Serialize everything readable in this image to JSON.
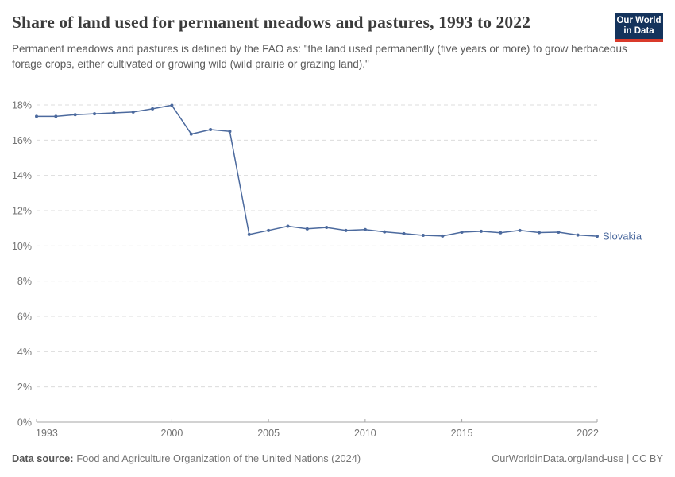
{
  "header": {
    "title": "Share of land used for permanent meadows and pastures, 1993 to 2022",
    "subtitle": "Permanent meadows and pastures is defined by the FAO as: \"the land used permanently (five years or more) to grow herbaceous forage crops, either cultivated or growing wild (wild prairie or grazing land).\"",
    "logo": {
      "line1": "Our World",
      "line2": "in Data",
      "bg_color": "#14335c",
      "accent_color": "#d93a2b"
    }
  },
  "chart_data": {
    "type": "line",
    "title": "Share of land used for permanent meadows and pastures, 1993 to 2022",
    "x": [
      1993,
      1994,
      1995,
      1996,
      1997,
      1998,
      1999,
      2000,
      2001,
      2002,
      2003,
      2004,
      2005,
      2006,
      2007,
      2008,
      2009,
      2010,
      2011,
      2012,
      2013,
      2014,
      2015,
      2016,
      2017,
      2018,
      2019,
      2020,
      2021,
      2022
    ],
    "series": [
      {
        "name": "Slovakia",
        "color": "#4c6a9e",
        "values": [
          17.35,
          17.35,
          17.45,
          17.5,
          17.55,
          17.6,
          17.78,
          17.98,
          16.35,
          16.6,
          16.5,
          10.65,
          10.88,
          11.12,
          10.97,
          11.05,
          10.88,
          10.93,
          10.8,
          10.7,
          10.6,
          10.56,
          10.78,
          10.83,
          10.75,
          10.88,
          10.76,
          10.78,
          10.62,
          10.55
        ]
      }
    ],
    "xlabel": "",
    "ylabel": "",
    "ylim": [
      0,
      18
    ],
    "yticks": [
      0,
      2,
      4,
      6,
      8,
      10,
      12,
      14,
      16,
      18
    ],
    "ytick_suffix": "%",
    "xticks": [
      1993,
      2000,
      2005,
      2010,
      2015,
      2022
    ],
    "grid": true,
    "legend_position": "line-end-label",
    "colors": {
      "gridline": "#dcdcdc",
      "axis": "#a5a5a5",
      "tick_label": "#747474"
    }
  },
  "footer": {
    "source_label": "Data source:",
    "source_text": "Food and Agriculture Organization of the United Nations (2024)",
    "link_text": "OurWorldinData.org/land-use | CC BY"
  }
}
